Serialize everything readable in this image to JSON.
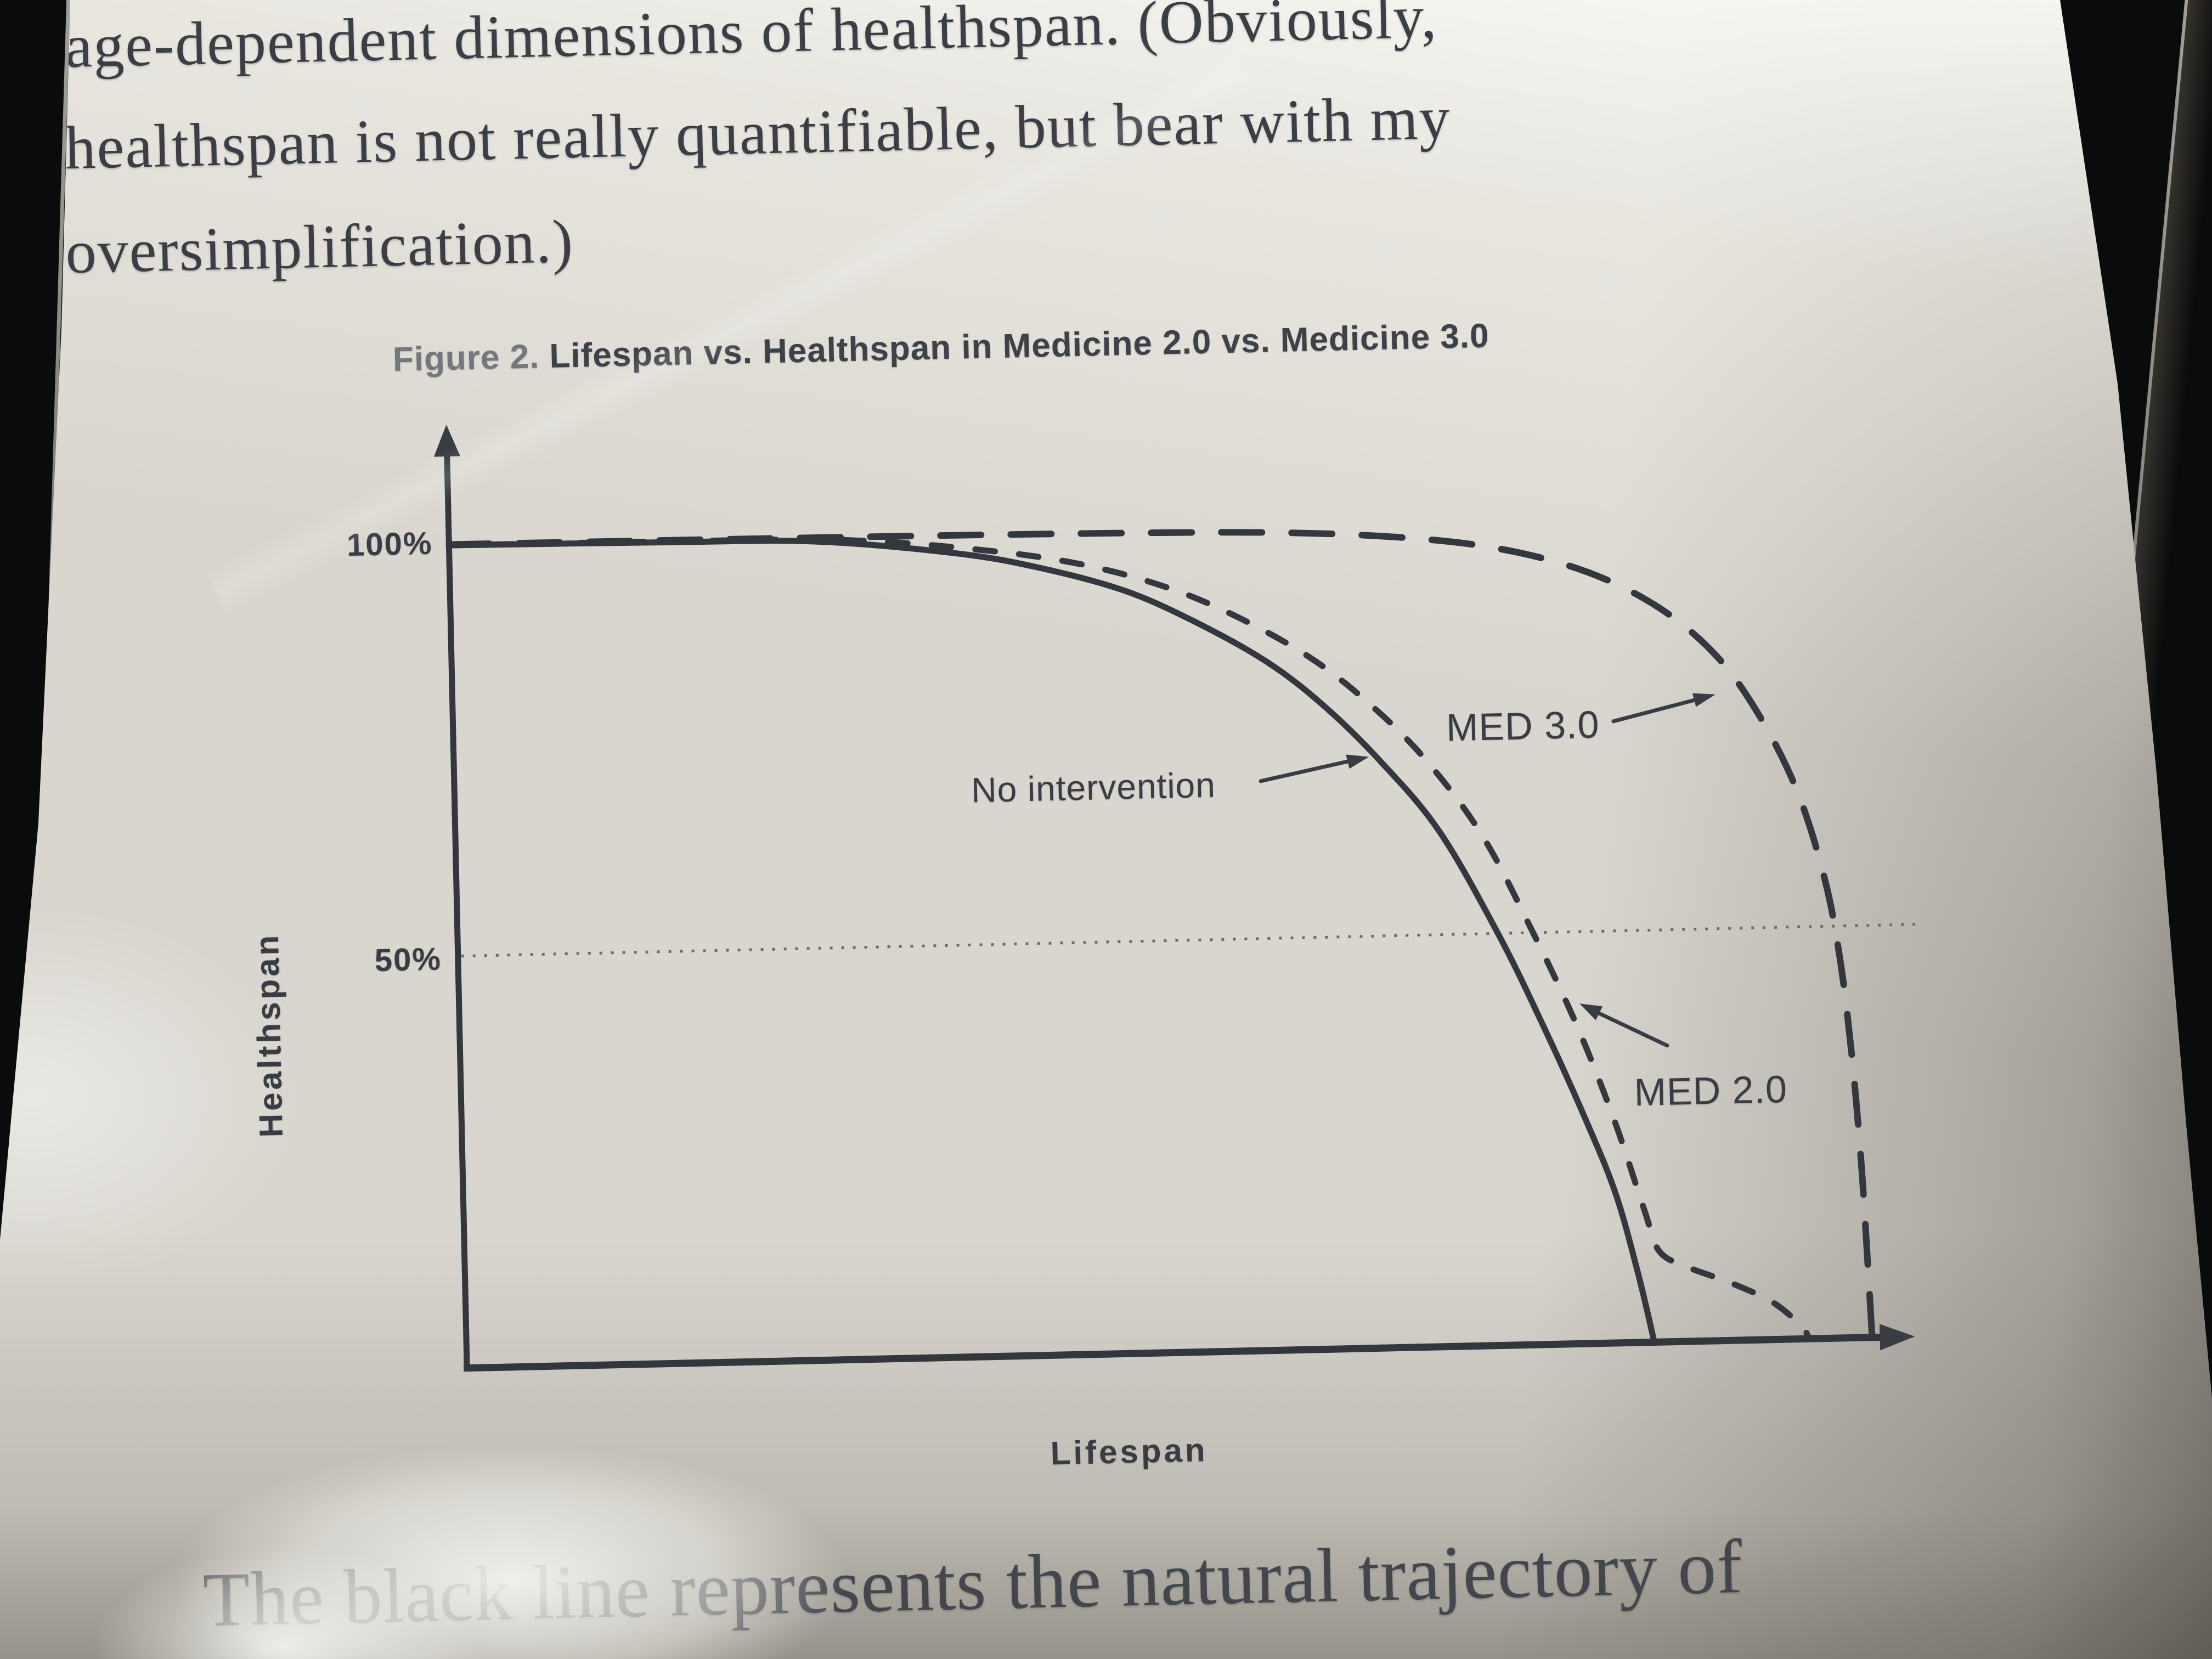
{
  "text": {
    "paragraph_top": [
      "age-dependent dimensions of healthspan. (Obviously,",
      "healthspan is not really quantifiable, but bear with my",
      "oversimplification.)"
    ],
    "paragraph_bottom": "The black line represents the natural trajectory of"
  },
  "figure": {
    "caption_label": "Figure 2.",
    "caption_title": "Lifespan vs. Healthspan in Medicine 2.0 vs. Medicine 3.0"
  },
  "chart_data": {
    "type": "line",
    "title": "Lifespan vs. Healthspan in Medicine 2.0 vs. Medicine 3.0",
    "xlabel": "Lifespan",
    "ylabel": "Healthspan",
    "xlim": [
      0,
      100
    ],
    "ylim": [
      0,
      100
    ],
    "grid": "off",
    "legend_position": "inline-annotations",
    "yticks": [
      {
        "value": 100,
        "label": "100%"
      },
      {
        "value": 50,
        "label": "50%"
      }
    ],
    "gridlines": [
      {
        "axis": "y",
        "value": 50,
        "style": "dotted"
      }
    ],
    "series": [
      {
        "name": "No intervention",
        "style": "solid",
        "points": [
          [
            0,
            99.8
          ],
          [
            15,
            99.6
          ],
          [
            26,
            99.3
          ],
          [
            36,
            97.5
          ],
          [
            42,
            95.5
          ],
          [
            48,
            92.5
          ],
          [
            53,
            88.5
          ],
          [
            58,
            83.5
          ],
          [
            62,
            78
          ],
          [
            66,
            71
          ],
          [
            70,
            62.5
          ],
          [
            74,
            50
          ],
          [
            77,
            39
          ],
          [
            80,
            27
          ],
          [
            82,
            18
          ],
          [
            83.5,
            8
          ],
          [
            84.5,
            0
          ]
        ]
      },
      {
        "name": "MED 2.0",
        "style": "short-dash",
        "points": [
          [
            0,
            99.8
          ],
          [
            15,
            99.7
          ],
          [
            28,
            99.4
          ],
          [
            38,
            97.8
          ],
          [
            45,
            95.8
          ],
          [
            51,
            92.8
          ],
          [
            56,
            89
          ],
          [
            61,
            84
          ],
          [
            65,
            78.5
          ],
          [
            69,
            71.5
          ],
          [
            73,
            62
          ],
          [
            76.5,
            50
          ],
          [
            79.5,
            38.5
          ],
          [
            82,
            27
          ],
          [
            84,
            16
          ],
          [
            85,
            11
          ],
          [
            87,
            9
          ],
          [
            90,
            7
          ],
          [
            93,
            4.5
          ],
          [
            95,
            1.5
          ],
          [
            95.5,
            0
          ]
        ]
      },
      {
        "name": "MED 3.0",
        "style": "long-dash",
        "points": [
          [
            0,
            99.9
          ],
          [
            20,
            99.8
          ],
          [
            42,
            99.6
          ],
          [
            58,
            99.2
          ],
          [
            68,
            98.2
          ],
          [
            75,
            96.5
          ],
          [
            81,
            93.5
          ],
          [
            86,
            89
          ],
          [
            90,
            83
          ],
          [
            93,
            75.5
          ],
          [
            95.5,
            66.5
          ],
          [
            97.3,
            56
          ],
          [
            98.3,
            46
          ],
          [
            99,
            34
          ],
          [
            99.5,
            21
          ],
          [
            99.8,
            9
          ],
          [
            100,
            0
          ]
        ]
      }
    ],
    "annotations": [
      {
        "label": "No intervention",
        "target_series": "No intervention"
      },
      {
        "label": "MED 3.0",
        "target_series": "MED 3.0"
      },
      {
        "label": "MED 2.0",
        "target_series": "MED 2.0"
      }
    ]
  },
  "colors": {
    "ink": "#3b3d45",
    "caption_label_gray": "#75777c",
    "paper": "#d9d6cf",
    "bezel_black": "#0b0b0b",
    "dotted_gridline": "#6b6b68"
  }
}
